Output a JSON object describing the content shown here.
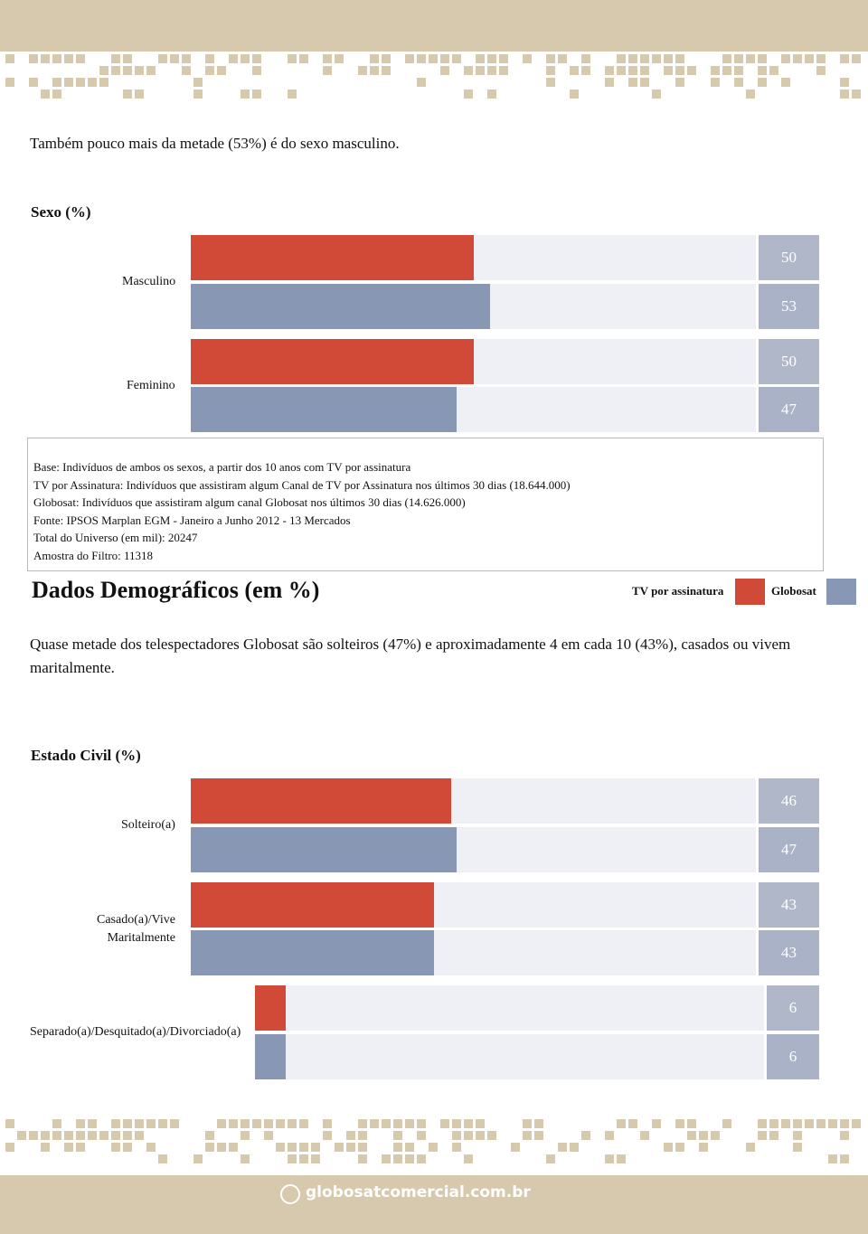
{
  "intro": "Também pouco mais da metade (53%) é do sexo masculino.",
  "charts": [
    {
      "type": "bar",
      "title": "Sexo (%)",
      "categories": [
        "Masculino",
        "Feminino"
      ],
      "series": [
        {
          "name": "TV por assinatura",
          "color": "#d04a37",
          "values": [
            50,
            50
          ]
        },
        {
          "name": "Globosat",
          "color": "#8898b4",
          "values": [
            53,
            47
          ]
        }
      ],
      "xlim": [
        0,
        100
      ]
    },
    {
      "type": "bar",
      "title": "Estado Civil (%)",
      "categories": [
        "Solteiro(a)",
        "Casado(a)/Vive Maritalmente",
        "Separado(a)/Desquitado(a)/Divorciado(a)"
      ],
      "series": [
        {
          "name": "TV por assinatura",
          "color": "#d04a37",
          "values": [
            46,
            43,
            6
          ]
        },
        {
          "name": "Globosat",
          "color": "#8898b4",
          "values": [
            47,
            43,
            6
          ]
        }
      ],
      "xlim": [
        0,
        100
      ]
    }
  ],
  "notes": [
    "Base: Indivíduos de ambos os sexos, a partir dos 10 anos com TV por assinatura",
    "TV por Assinatura: Indivíduos que assistiram algum Canal de TV por Assinatura nos últimos 30 dias (18.644.000)",
    "Globosat: Indivíduos que assistiram algum canal Globosat nos últimos 30 dias (14.626.000)",
    "Fonte: IPSOS Marplan EGM - Janeiro a Junho 2012 - 13 Mercados",
    "Total do Universo (em mil): 20247",
    "Amostra do Filtro: 11318"
  ],
  "section_title": "Dados Demográficos (em %)",
  "paragraph": "Quase metade dos telespectadores Globosat são solteiros (47%) e aproximadamente 4 em cada 10 (43%), casados ou vivem maritalmente.",
  "footer": "globosatcomercial.com.br"
}
